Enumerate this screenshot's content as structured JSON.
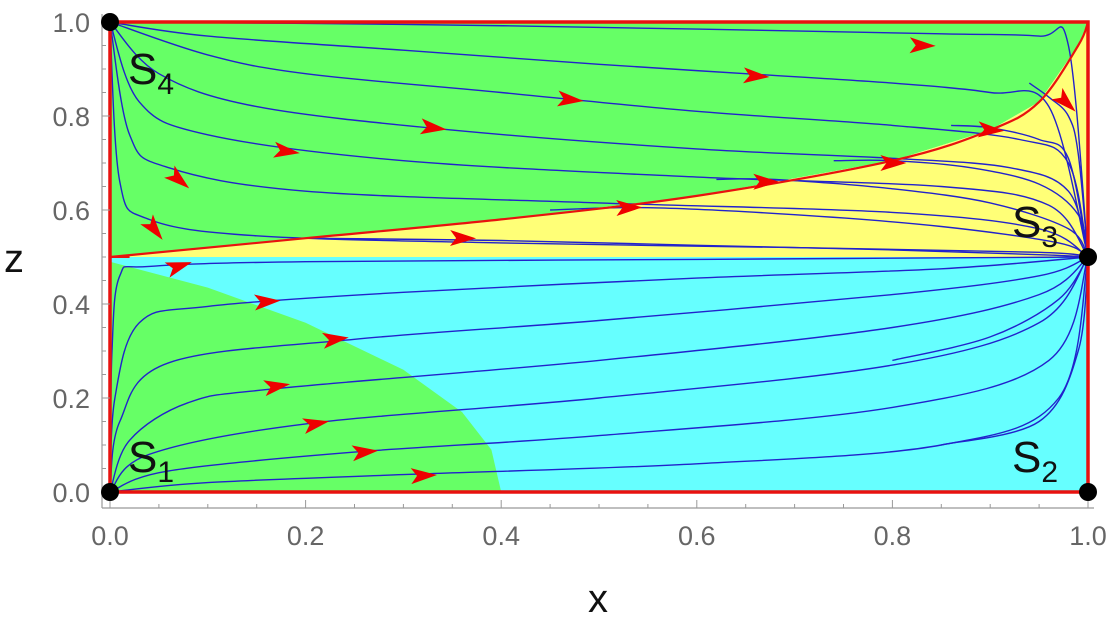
{
  "chart_data": {
    "type": "phase-portrait",
    "xlabel": "x",
    "ylabel": "z",
    "xlim": [
      0,
      1
    ],
    "ylim": [
      0,
      1
    ],
    "x_ticks": [
      "0.0",
      "0.2",
      "0.4",
      "0.6",
      "0.8",
      "1.0"
    ],
    "y_ticks": [
      "0.0",
      "0.2",
      "0.4",
      "0.6",
      "0.8",
      "1.0"
    ],
    "colors": {
      "green_region": "#66ff66",
      "yellow_region": "#ffff77",
      "cyan_region": "#66ffff",
      "boundary": "#e8120f",
      "trajectory": "#2222cc",
      "arrow": "#ee0000",
      "point": "#000000"
    },
    "equilibria": [
      {
        "name": "S",
        "sub": "1",
        "x": 0,
        "z": 0
      },
      {
        "name": "S",
        "sub": "2",
        "x": 1,
        "z": 0
      },
      {
        "name": "S",
        "sub": "3",
        "x": 1,
        "z": 0.5
      },
      {
        "name": "S",
        "sub": "4",
        "x": 0,
        "z": 1
      }
    ],
    "regions": {
      "green_lower_boundary": [
        [
          0,
          0.49
        ],
        [
          0.1,
          0.435
        ],
        [
          0.2,
          0.36
        ],
        [
          0.3,
          0.26
        ],
        [
          0.36,
          0.17
        ],
        [
          0.39,
          0.09
        ],
        [
          0.4,
          0
        ]
      ],
      "separatrix": [
        [
          0,
          0.5
        ],
        [
          0.2,
          0.54
        ],
        [
          0.4,
          0.58
        ],
        [
          0.6,
          0.63
        ],
        [
          0.8,
          0.705
        ],
        [
          0.9,
          0.77
        ],
        [
          0.95,
          0.83
        ],
        [
          0.99,
          0.95
        ],
        [
          1,
          1
        ]
      ]
    },
    "upper_trajectories": [
      {
        "points": [
          [
            0,
            1
          ],
          [
            0.3,
            0.995
          ],
          [
            0.6,
            0.985
          ],
          [
            0.85,
            0.975
          ],
          [
            0.95,
            0.97
          ],
          [
            0.98,
            0.95
          ],
          [
            1,
            0.5
          ]
        ],
        "arrow": [
          0.83,
          0.95
        ]
      },
      {
        "points": [
          [
            0,
            1
          ],
          [
            0.1,
            0.97
          ],
          [
            0.3,
            0.94
          ],
          [
            0.5,
            0.91
          ],
          [
            0.65,
            0.89
          ],
          [
            0.8,
            0.87
          ],
          [
            0.9,
            0.85
          ],
          [
            0.96,
            0.82
          ],
          [
            1,
            0.5
          ]
        ],
        "arrow": [
          0.66,
          0.885
        ]
      },
      {
        "points": [
          [
            0,
            1
          ],
          [
            0.1,
            0.93
          ],
          [
            0.2,
            0.89
          ],
          [
            0.4,
            0.85
          ],
          [
            0.6,
            0.81
          ],
          [
            0.8,
            0.78
          ],
          [
            0.93,
            0.75
          ],
          [
            0.98,
            0.7
          ],
          [
            1,
            0.5
          ]
        ],
        "arrow": [
          0.47,
          0.835
        ]
      },
      {
        "points": [
          [
            0,
            1
          ],
          [
            0.05,
            0.89
          ],
          [
            0.15,
            0.82
          ],
          [
            0.35,
            0.77
          ],
          [
            0.6,
            0.73
          ],
          [
            0.8,
            0.71
          ],
          [
            0.92,
            0.69
          ],
          [
            0.98,
            0.64
          ],
          [
            1,
            0.5
          ]
        ],
        "arrow": [
          0.33,
          0.775
        ]
      },
      {
        "points": [
          [
            0,
            1
          ],
          [
            0.03,
            0.83
          ],
          [
            0.1,
            0.76
          ],
          [
            0.3,
            0.705
          ],
          [
            0.6,
            0.67
          ],
          [
            0.85,
            0.65
          ],
          [
            0.96,
            0.61
          ],
          [
            1,
            0.5
          ]
        ],
        "arrow": [
          0.18,
          0.725
        ]
      },
      {
        "points": [
          [
            0,
            1
          ],
          [
            0.02,
            0.76
          ],
          [
            0.06,
            0.69
          ],
          [
            0.2,
            0.64
          ],
          [
            0.5,
            0.615
          ],
          [
            0.8,
            0.595
          ],
          [
            0.95,
            0.56
          ],
          [
            1,
            0.5
          ]
        ],
        "arrow": [
          0.07,
          0.665
        ]
      },
      {
        "points": [
          [
            0,
            1
          ],
          [
            0.01,
            0.66
          ],
          [
            0.04,
            0.58
          ],
          [
            0.15,
            0.545
          ],
          [
            0.4,
            0.53
          ],
          [
            0.7,
            0.52
          ],
          [
            0.95,
            0.51
          ],
          [
            1,
            0.5
          ]
        ],
        "arrow": [
          0.045,
          0.56
        ]
      },
      {
        "points": [
          [
            0.2,
            0.54
          ],
          [
            0.4,
            0.535
          ],
          [
            0.6,
            0.525
          ],
          [
            0.8,
            0.515
          ],
          [
            0.95,
            0.505
          ],
          [
            1,
            0.5
          ]
        ],
        "arrow": [
          0.36,
          0.54
        ]
      },
      {
        "points": [
          [
            0.45,
            0.6
          ],
          [
            0.55,
            0.605
          ],
          [
            0.7,
            0.59
          ],
          [
            0.85,
            0.565
          ],
          [
            0.97,
            0.53
          ],
          [
            1,
            0.5
          ]
        ],
        "arrow": [
          0.53,
          0.605
        ]
      },
      {
        "points": [
          [
            0.62,
            0.665
          ],
          [
            0.68,
            0.665
          ],
          [
            0.8,
            0.645
          ],
          [
            0.9,
            0.615
          ],
          [
            0.98,
            0.56
          ],
          [
            1,
            0.5
          ]
        ],
        "arrow": [
          0.67,
          0.66
        ]
      },
      {
        "points": [
          [
            0.74,
            0.705
          ],
          [
            0.8,
            0.705
          ],
          [
            0.88,
            0.69
          ],
          [
            0.95,
            0.655
          ],
          [
            0.99,
            0.59
          ],
          [
            1,
            0.5
          ]
        ],
        "arrow": [
          0.8,
          0.7
        ]
      },
      {
        "points": [
          [
            0.86,
            0.78
          ],
          [
            0.9,
            0.775
          ],
          [
            0.95,
            0.75
          ],
          [
            0.98,
            0.71
          ],
          [
            1,
            0.5
          ]
        ],
        "arrow": [
          0.9,
          0.77
        ]
      },
      {
        "points": [
          [
            0.94,
            0.87
          ],
          [
            0.96,
            0.84
          ],
          [
            0.98,
            0.8
          ],
          [
            0.99,
            0.72
          ],
          [
            1,
            0.5
          ]
        ],
        "arrow": [
          0.977,
          0.83
        ]
      }
    ],
    "lower_trajectories": [
      {
        "points": [
          [
            0,
            0
          ],
          [
            0.002,
            0.3
          ],
          [
            0.01,
            0.46
          ],
          [
            0.04,
            0.48
          ],
          [
            0.2,
            0.49
          ],
          [
            0.6,
            0.495
          ],
          [
            1,
            0.5
          ]
        ],
        "arrow": [
          0.07,
          0.48
        ]
      },
      {
        "points": [
          [
            0,
            0
          ],
          [
            0.005,
            0.2
          ],
          [
            0.03,
            0.36
          ],
          [
            0.1,
            0.395
          ],
          [
            0.3,
            0.425
          ],
          [
            0.6,
            0.455
          ],
          [
            0.85,
            0.475
          ],
          [
            1,
            0.5
          ]
        ],
        "arrow": [
          0.16,
          0.405
        ]
      },
      {
        "points": [
          [
            0,
            0
          ],
          [
            0.01,
            0.15
          ],
          [
            0.06,
            0.275
          ],
          [
            0.25,
            0.325
          ],
          [
            0.5,
            0.365
          ],
          [
            0.8,
            0.42
          ],
          [
            0.95,
            0.46
          ],
          [
            1,
            0.5
          ]
        ],
        "arrow": [
          0.23,
          0.325
        ]
      },
      {
        "points": [
          [
            0,
            0
          ],
          [
            0.02,
            0.11
          ],
          [
            0.08,
            0.19
          ],
          [
            0.17,
            0.22
          ],
          [
            0.5,
            0.28
          ],
          [
            0.8,
            0.35
          ],
          [
            0.95,
            0.42
          ],
          [
            1,
            0.5
          ]
        ],
        "arrow": [
          0.17,
          0.225
        ]
      },
      {
        "points": [
          [
            0,
            0
          ],
          [
            0.04,
            0.08
          ],
          [
            0.2,
            0.145
          ],
          [
            0.5,
            0.2
          ],
          [
            0.8,
            0.27
          ],
          [
            0.95,
            0.36
          ],
          [
            1,
            0.5
          ]
        ],
        "arrow": [
          0.21,
          0.145
        ]
      },
      {
        "points": [
          [
            0,
            0
          ],
          [
            0.06,
            0.045
          ],
          [
            0.25,
            0.085
          ],
          [
            0.5,
            0.12
          ],
          [
            0.8,
            0.18
          ],
          [
            0.96,
            0.28
          ],
          [
            1,
            0.5
          ]
        ],
        "arrow": [
          0.26,
          0.085
        ]
      },
      {
        "points": [
          [
            0,
            0
          ],
          [
            0.1,
            0.02
          ],
          [
            0.3,
            0.037
          ],
          [
            0.6,
            0.06
          ],
          [
            0.85,
            0.1
          ],
          [
            0.97,
            0.2
          ],
          [
            1,
            0.5
          ]
        ],
        "arrow": [
          0.32,
          0.035
        ]
      },
      {
        "points": [
          [
            0.85,
            0.1
          ],
          [
            0.95,
            0.15
          ],
          [
            0.99,
            0.3
          ],
          [
            1,
            0.5
          ]
        ],
        "arrow": null
      },
      {
        "points": [
          [
            0.8,
            0.28
          ],
          [
            0.9,
            0.33
          ],
          [
            0.97,
            0.41
          ],
          [
            1,
            0.5
          ]
        ],
        "arrow": null
      }
    ]
  }
}
